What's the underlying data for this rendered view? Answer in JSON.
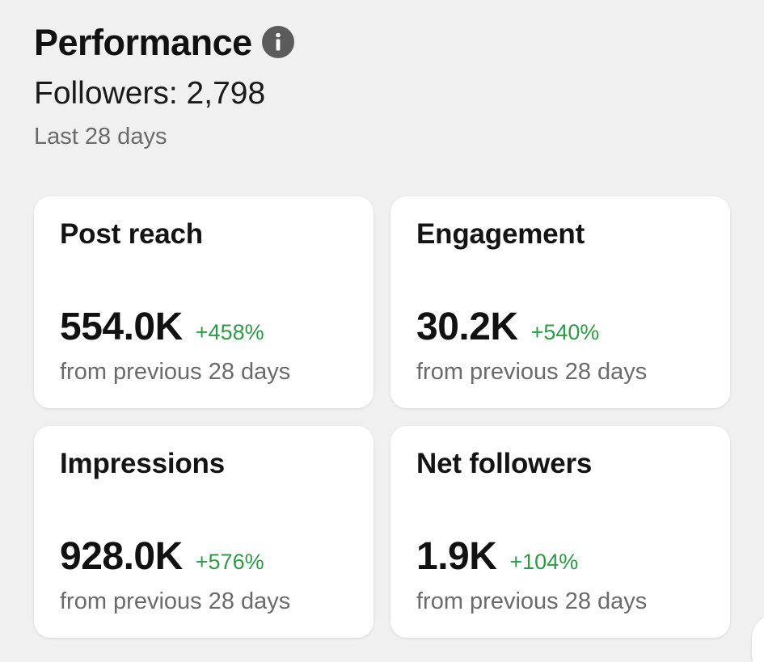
{
  "header": {
    "title": "Performance",
    "followers": "Followers: 2,798",
    "period": "Last 28 days"
  },
  "icons": {
    "info": "info-icon"
  },
  "colors": {
    "positive": "#2e9a48",
    "card_bg": "#ffffff",
    "page_bg": "#f0f0f0",
    "info_icon_bg": "#5b5b5b"
  },
  "cards": [
    {
      "label": "Post reach",
      "value": "554.0K",
      "change": "+458%",
      "sub": "from previous 28 days"
    },
    {
      "label": "Engagement",
      "value": "30.2K",
      "change": "+540%",
      "sub": "from previous 28 days"
    },
    {
      "label": "Impressions",
      "value": "928.0K",
      "change": "+576%",
      "sub": "from previous 28 days"
    },
    {
      "label": "Net followers",
      "value": "1.9K",
      "change": "+104%",
      "sub": "from previous 28 days"
    }
  ]
}
